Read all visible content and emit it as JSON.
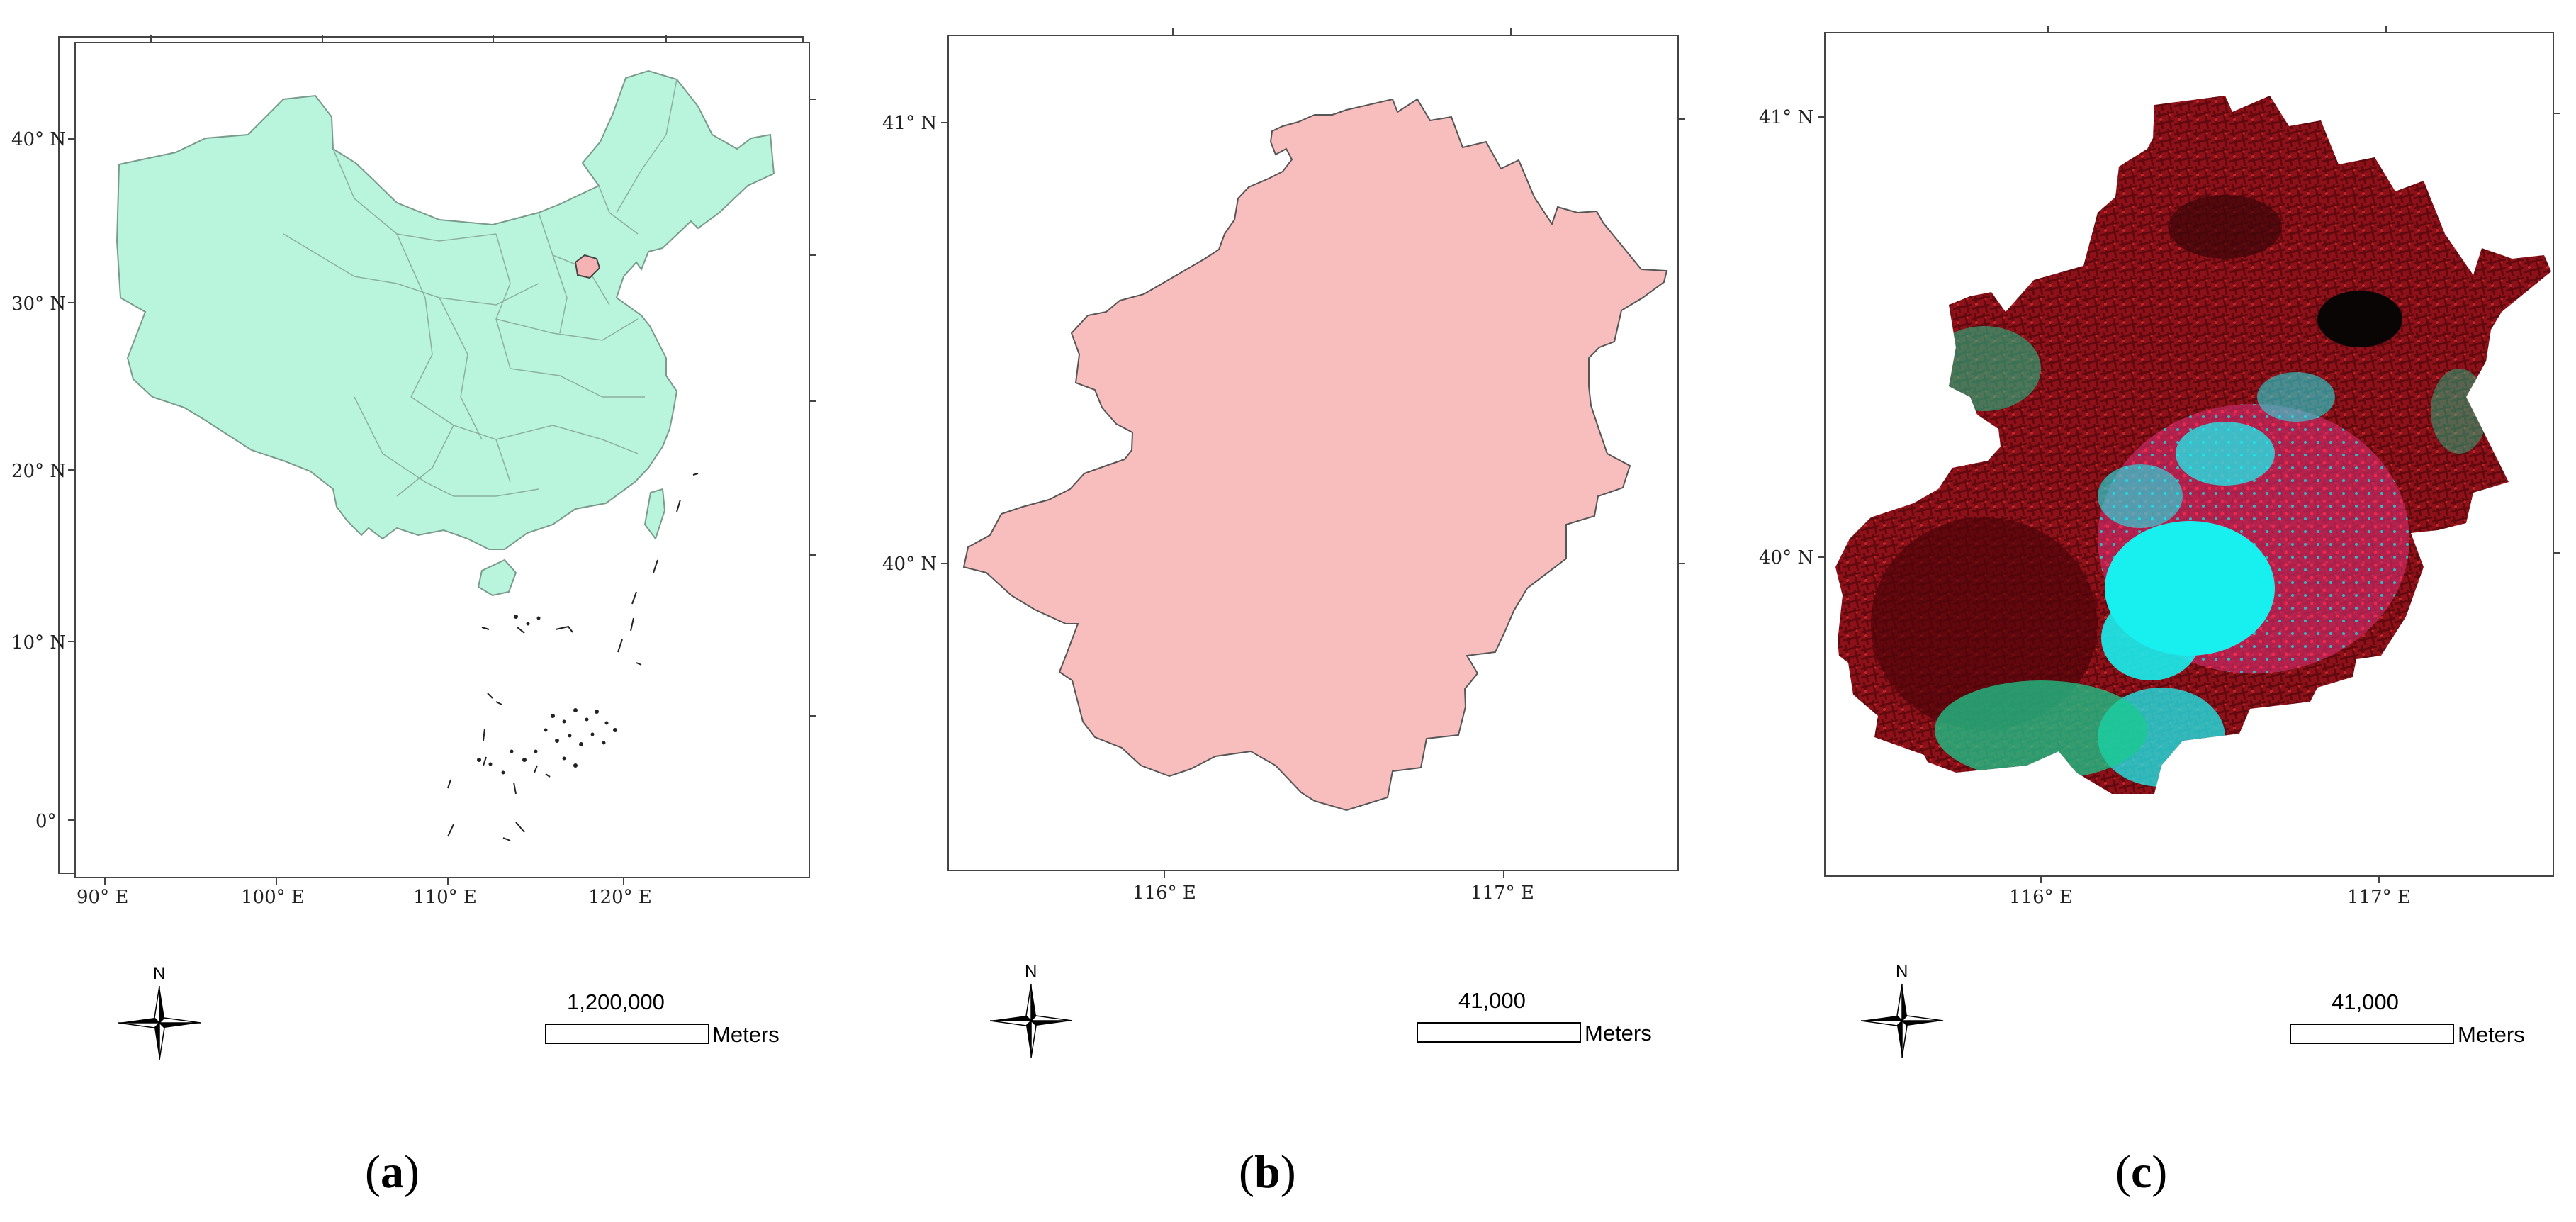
{
  "panels": [
    {
      "id": "a",
      "label_open": "(",
      "label_letter": "a",
      "label_close": ")",
      "fill_color": "#b8f5dc",
      "highlight_color": "#f5b3b3",
      "lat_labels": [
        "40° N",
        "30° N",
        "20° N",
        "10° N",
        "0°"
      ],
      "lon_labels": [
        "90° E",
        "100° E",
        "110° E",
        "120° E"
      ],
      "north_label": "N",
      "scale_value": "1,200,000",
      "scale_unit": "Meters"
    },
    {
      "id": "b",
      "label_open": "(",
      "label_letter": "b",
      "label_close": ")",
      "fill_color": "#f8bdbd",
      "lat_labels": [
        "41° N",
        "40° N"
      ],
      "lon_labels": [
        "116° E",
        "117° E"
      ],
      "north_label": "N",
      "scale_value": "41,000",
      "scale_unit": "Meters"
    },
    {
      "id": "c",
      "label_open": "(",
      "label_letter": "c",
      "label_close": ")",
      "image_colors": [
        "#6b0d14",
        "#a3121d",
        "#18f0f0",
        "#19c98e",
        "#cc2d6b",
        "#0a0505"
      ],
      "lat_labels": [
        "41° N",
        "40° N"
      ],
      "lon_labels": [
        "116° E",
        "117° E"
      ],
      "north_label": "N",
      "scale_value": "41,000",
      "scale_unit": "Meters"
    }
  ]
}
